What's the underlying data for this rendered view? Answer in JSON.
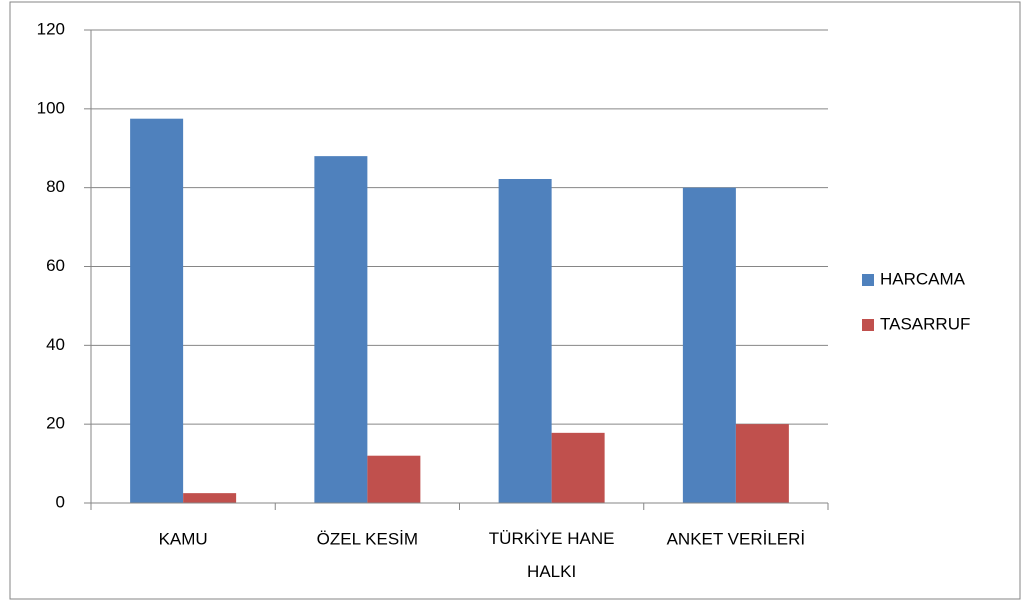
{
  "chart_data": {
    "type": "bar",
    "categories": [
      "KAMU",
      "ÖZEL KESİM",
      "TÜRKİYE HANE HALKI",
      "ANKET VERİLERİ"
    ],
    "series": [
      {
        "name": "HARCAMA",
        "color": "#4f81bd",
        "values": [
          97.5,
          88,
          82.2,
          80
        ]
      },
      {
        "name": "TASARRUF",
        "color": "#c0504d",
        "values": [
          2.5,
          12,
          17.8,
          20
        ]
      }
    ],
    "ylim": [
      0,
      120
    ],
    "yticks": [
      0,
      20,
      40,
      60,
      80,
      100,
      120
    ],
    "grid": true,
    "legend": "right"
  }
}
